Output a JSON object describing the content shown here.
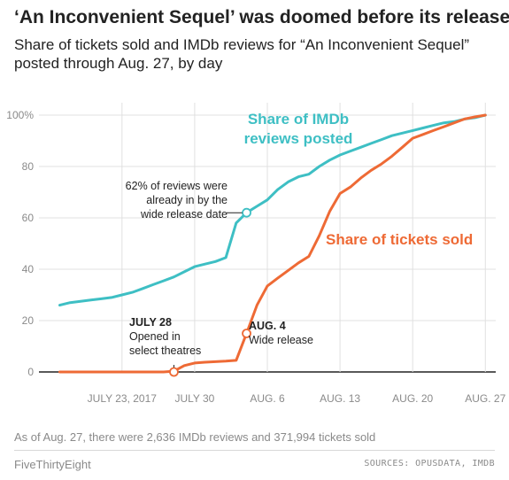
{
  "title": "‘An Inconvenient Sequel’ was doomed before its release",
  "subtitle": "Share of tickets sold and IMDb reviews for “An Inconvenient Sequel” posted through Aug. 27, by day",
  "note": "As of Aug. 27, there were 2,636 IMDb reviews and 371,994 tickets sold",
  "brand": "FiveThirtyEight",
  "sources": "SOURCES: OPUSDATA, IMDB",
  "colors": {
    "reviews": "#3ebfc4",
    "tickets": "#ee6a35",
    "grid": "#e0e0e0",
    "axis": "#222222",
    "label": "#8a8a8a"
  },
  "chart_data": {
    "type": "line",
    "x_start": "2017-07-17",
    "x_end": "2017-08-27",
    "xlim": [
      "2017-07-15",
      "2017-08-28"
    ],
    "ylim": [
      0,
      100
    ],
    "yticks": [
      0,
      20,
      40,
      60,
      80,
      100
    ],
    "ytick_labels": [
      "0",
      "20",
      "40",
      "60",
      "80",
      "100%"
    ],
    "xticks": [
      "2017-07-23",
      "2017-07-30",
      "2017-08-06",
      "2017-08-13",
      "2017-08-20",
      "2017-08-27"
    ],
    "xtick_labels": [
      "JULY 23, 2017",
      "JULY 30",
      "AUG. 6",
      "AUG. 13",
      "AUG. 20",
      "AUG. 27"
    ],
    "grid": true,
    "series": [
      {
        "name": "Share of IMDb reviews posted",
        "label_lines": [
          "Share of IMDb",
          "reviews posted"
        ],
        "color": "#3ebfc4",
        "values": [
          [
            "2017-07-17",
            26
          ],
          [
            "2017-07-18",
            27
          ],
          [
            "2017-07-19",
            27.5
          ],
          [
            "2017-07-20",
            28
          ],
          [
            "2017-07-21",
            28.5
          ],
          [
            "2017-07-22",
            29
          ],
          [
            "2017-07-23",
            30
          ],
          [
            "2017-07-24",
            31
          ],
          [
            "2017-07-25",
            32.5
          ],
          [
            "2017-07-26",
            34
          ],
          [
            "2017-07-27",
            35.5
          ],
          [
            "2017-07-28",
            37
          ],
          [
            "2017-07-29",
            39
          ],
          [
            "2017-07-30",
            41
          ],
          [
            "2017-07-31",
            42
          ],
          [
            "2017-08-01",
            43
          ],
          [
            "2017-08-02",
            44.5
          ],
          [
            "2017-08-03",
            58
          ],
          [
            "2017-08-04",
            62
          ],
          [
            "2017-08-05",
            64.5
          ],
          [
            "2017-08-06",
            67
          ],
          [
            "2017-08-07",
            71
          ],
          [
            "2017-08-08",
            74
          ],
          [
            "2017-08-09",
            76
          ],
          [
            "2017-08-10",
            77
          ],
          [
            "2017-08-11",
            80
          ],
          [
            "2017-08-12",
            82.5
          ],
          [
            "2017-08-13",
            84.5
          ],
          [
            "2017-08-14",
            86
          ],
          [
            "2017-08-15",
            87.5
          ],
          [
            "2017-08-16",
            89
          ],
          [
            "2017-08-17",
            90.5
          ],
          [
            "2017-08-18",
            92
          ],
          [
            "2017-08-19",
            93
          ],
          [
            "2017-08-20",
            94
          ],
          [
            "2017-08-21",
            95
          ],
          [
            "2017-08-22",
            96
          ],
          [
            "2017-08-23",
            97
          ],
          [
            "2017-08-24",
            97.5
          ],
          [
            "2017-08-25",
            98.5
          ],
          [
            "2017-08-26",
            99
          ],
          [
            "2017-08-27",
            100
          ]
        ]
      },
      {
        "name": "Share of tickets sold",
        "label_lines": [
          "Share of tickets sold"
        ],
        "color": "#ee6a35",
        "values": [
          [
            "2017-07-17",
            0
          ],
          [
            "2017-07-18",
            0
          ],
          [
            "2017-07-19",
            0
          ],
          [
            "2017-07-20",
            0
          ],
          [
            "2017-07-21",
            0
          ],
          [
            "2017-07-22",
            0
          ],
          [
            "2017-07-23",
            0
          ],
          [
            "2017-07-24",
            0
          ],
          [
            "2017-07-25",
            0
          ],
          [
            "2017-07-26",
            0
          ],
          [
            "2017-07-27",
            0
          ],
          [
            "2017-07-28",
            0.3
          ],
          [
            "2017-07-29",
            2.5
          ],
          [
            "2017-07-30",
            3.5
          ],
          [
            "2017-07-31",
            3.8
          ],
          [
            "2017-08-01",
            4.0
          ],
          [
            "2017-08-02",
            4.2
          ],
          [
            "2017-08-03",
            4.5
          ],
          [
            "2017-08-04",
            15
          ],
          [
            "2017-08-05",
            26
          ],
          [
            "2017-08-06",
            33.5
          ],
          [
            "2017-08-07",
            36.5
          ],
          [
            "2017-08-08",
            39.5
          ],
          [
            "2017-08-09",
            42.5
          ],
          [
            "2017-08-10",
            45
          ],
          [
            "2017-08-11",
            53
          ],
          [
            "2017-08-12",
            62.5
          ],
          [
            "2017-08-13",
            69.5
          ],
          [
            "2017-08-14",
            72
          ],
          [
            "2017-08-15",
            75.5
          ],
          [
            "2017-08-16",
            78.5
          ],
          [
            "2017-08-17",
            81
          ],
          [
            "2017-08-18",
            84
          ],
          [
            "2017-08-19",
            87.5
          ],
          [
            "2017-08-20",
            91
          ],
          [
            "2017-08-21",
            92.5
          ],
          [
            "2017-08-22",
            94
          ],
          [
            "2017-08-23",
            95.5
          ],
          [
            "2017-08-24",
            97
          ],
          [
            "2017-08-25",
            98.5
          ],
          [
            "2017-08-26",
            99.3
          ],
          [
            "2017-08-27",
            100
          ]
        ]
      }
    ],
    "annotations": [
      {
        "id": "reviews-at-wide-release",
        "x": "2017-08-04",
        "y": 62,
        "series": "Share of IMDb reviews posted",
        "text_lines": [
          "62% of reviews were",
          "already in by the",
          "wide release date"
        ],
        "bold_lines": []
      },
      {
        "id": "july-28",
        "x": "2017-07-28",
        "y": 0,
        "series": "Share of tickets sold",
        "text_lines": [
          "JULY 28",
          "Opened in",
          "select theatres"
        ],
        "bold_lines": [
          0
        ]
      },
      {
        "id": "aug-4",
        "x": "2017-08-04",
        "y": 15,
        "series": "Share of tickets sold",
        "text_lines": [
          "AUG. 4",
          "Wide release"
        ],
        "bold_lines": [
          0
        ]
      }
    ]
  }
}
